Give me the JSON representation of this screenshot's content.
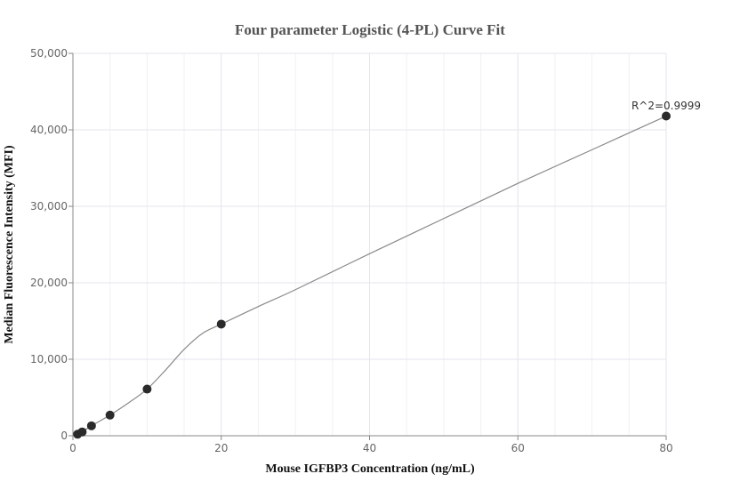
{
  "chart_data": {
    "type": "scatter",
    "title": "Four parameter Logistic (4-PL) Curve Fit",
    "xlabel": "Mouse IGFBP3 Concentration (ng/mL)",
    "ylabel": "Median Fluorescence Intensity (MFI)",
    "xlim": [
      0,
      80
    ],
    "ylim": [
      0,
      50000
    ],
    "x_ticks": [
      0,
      20,
      40,
      60,
      80
    ],
    "x_tick_labels": [
      "0",
      "20",
      "40",
      "60",
      "80"
    ],
    "y_ticks": [
      0,
      10000,
      20000,
      30000,
      40000,
      50000
    ],
    "y_tick_labels": [
      "0",
      "10,000",
      "20,000",
      "30,000",
      "40,000",
      "50,000"
    ],
    "grid": true,
    "series": [
      {
        "x": [
          0.625,
          1.25,
          2.5,
          5,
          10,
          20,
          80
        ],
        "y": [
          200,
          500,
          1300,
          2700,
          6100,
          14600,
          41800
        ],
        "color": "#2b2b2b"
      }
    ],
    "fit_curve": {
      "color": "#8a8a8a",
      "x": [
        0,
        0.625,
        1.25,
        2.5,
        5,
        7.5,
        10,
        12.5,
        15,
        17.5,
        20,
        25,
        30,
        40,
        50,
        60,
        70,
        80
      ],
      "y": [
        0,
        200,
        500,
        1300,
        2700,
        4300,
        6100,
        8600,
        11300,
        13400,
        14600,
        16900,
        19100,
        23800,
        28400,
        33000,
        37400,
        41800
      ]
    },
    "annotation": "R^2=0.9999"
  }
}
